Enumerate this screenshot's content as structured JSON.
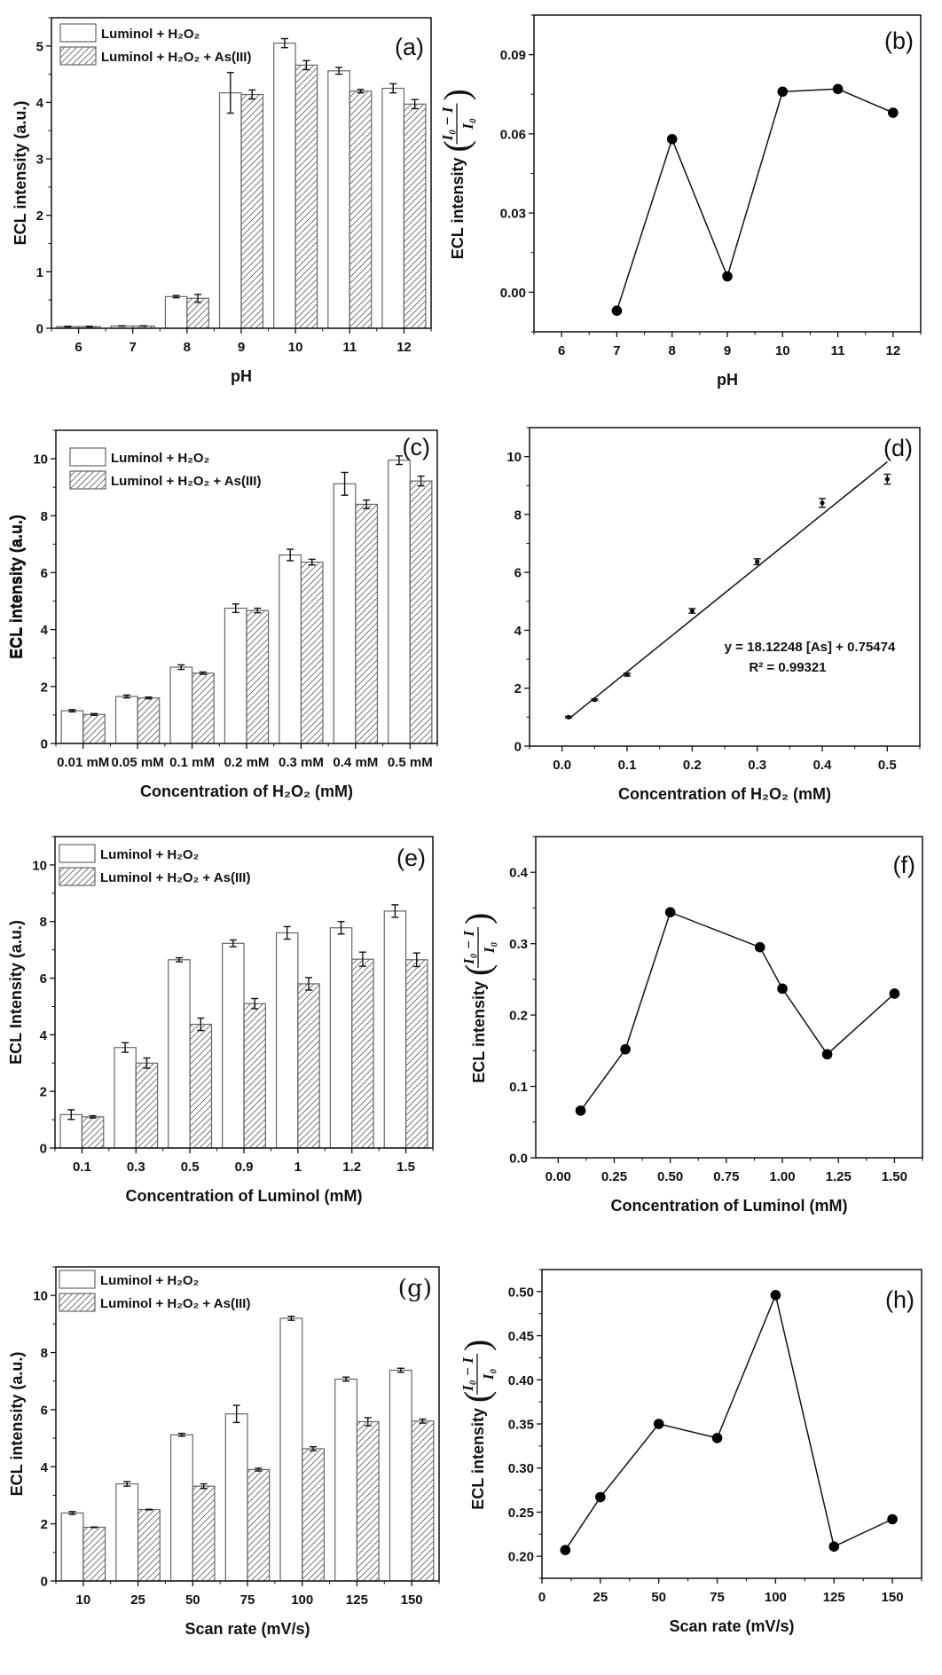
{
  "colors": {
    "axis": "#111111",
    "bar_outline": "#666666",
    "hatch": "#666666",
    "marker": "#000000"
  },
  "chart_data": [
    {
      "panel_label": "(a)",
      "type": "bar",
      "categories": [
        "6",
        "7",
        "8",
        "9",
        "10",
        "11",
        "12"
      ],
      "series": [
        {
          "name": "Luminol + H₂O₂",
          "pattern": "none",
          "values": [
            0.03,
            0.04,
            0.56,
            4.17,
            5.05,
            4.56,
            4.25
          ],
          "errors": [
            0.005,
            0.003,
            0.02,
            0.36,
            0.08,
            0.06,
            0.08
          ]
        },
        {
          "name": "Luminol + H₂O₂ + As(III)",
          "pattern": "hatched",
          "values": [
            0.03,
            0.04,
            0.53,
            4.14,
            4.66,
            4.2,
            3.97
          ],
          "errors": [
            0.005,
            0.003,
            0.07,
            0.08,
            0.08,
            0.03,
            0.08
          ]
        }
      ],
      "xlabel": "pH",
      "ylabel": "ECL intensity (a.u.)",
      "ylim": [
        0,
        5.5
      ],
      "yticks": [
        0,
        1,
        2,
        3,
        4,
        5
      ],
      "ytick_labels": [
        "0",
        "1",
        "2",
        "3",
        "4",
        "5"
      ],
      "legend": "top-left",
      "grid": false
    },
    {
      "panel_label": "(b)",
      "type": "line",
      "x": [
        7,
        8,
        9,
        10,
        11,
        12
      ],
      "y": [
        -0.007,
        0.058,
        0.006,
        0.076,
        0.077,
        0.068
      ],
      "xlabel": "pH",
      "ylabel": "ECL intensity",
      "ylabel_fraction": {
        "numerator": "I₀ − I",
        "denominator": "I₀"
      },
      "xlim": [
        5.5,
        12.5
      ],
      "xticks": [
        6,
        7,
        8,
        9,
        10,
        11,
        12
      ],
      "xtick_labels": [
        "6",
        "7",
        "8",
        "9",
        "10",
        "11",
        "12"
      ],
      "ylim": [
        -0.015,
        0.105
      ],
      "yticks": [
        0,
        0.03,
        0.06,
        0.09
      ],
      "ytick_labels": [
        "0.00",
        "0.03",
        "0.06",
        "0.09"
      ],
      "grid": false
    },
    {
      "panel_label": "(c)",
      "type": "bar",
      "categories": [
        "0.01 mM",
        "0.05 mM",
        "0.1 mM",
        "0.2 mM",
        "0.3 mM",
        "0.4 mM",
        "0.5 mM"
      ],
      "series": [
        {
          "name": "Luminol + H₂O₂",
          "pattern": "none",
          "values": [
            1.15,
            1.65,
            2.68,
            4.75,
            6.62,
            9.12,
            9.95
          ],
          "errors": [
            0.04,
            0.05,
            0.08,
            0.15,
            0.2,
            0.4,
            0.15
          ]
        },
        {
          "name": "Luminol + H₂O₂ + As(III)",
          "pattern": "hatched",
          "values": [
            1.02,
            1.6,
            2.47,
            4.67,
            6.37,
            8.4,
            9.22
          ],
          "errors": [
            0.03,
            0.03,
            0.04,
            0.08,
            0.1,
            0.15,
            0.17
          ]
        }
      ],
      "xlabel": "Concentration of H₂O₂ (mM)",
      "ylabel": "ECL intensity (a.u.)",
      "ylim": [
        0,
        11
      ],
      "yticks": [
        0,
        2,
        4,
        6,
        8,
        10
      ],
      "ytick_labels": [
        "0",
        "2",
        "4",
        "6",
        "8",
        "10"
      ],
      "legend": "top-left",
      "grid": false
    },
    {
      "panel_label": "(d)",
      "type": "scatter",
      "x": [
        0.01,
        0.05,
        0.1,
        0.2,
        0.3,
        0.4,
        0.5
      ],
      "y": [
        1.0,
        1.6,
        2.47,
        4.67,
        6.37,
        8.4,
        9.22
      ],
      "errors": [
        0.03,
        0.03,
        0.05,
        0.08,
        0.1,
        0.15,
        0.17
      ],
      "fit": {
        "slope": 18.12248,
        "intercept": 0.75474,
        "r2": 0.99321
      },
      "annotations": [
        "y = 18.12248 [As] + 0.75474",
        "R² = 0.99321"
      ],
      "xlabel": "Concentration of H₂O₂ (mM)",
      "ylabel": "ECL intensity (a.u.)",
      "xlim": [
        -0.05,
        0.55
      ],
      "xticks": [
        0,
        0.1,
        0.2,
        0.3,
        0.4,
        0.5
      ],
      "xtick_labels": [
        "0.0",
        "0.1",
        "0.2",
        "0.3",
        "0.4",
        "0.5"
      ],
      "ylim": [
        0,
        11
      ],
      "yticks": [
        0,
        2,
        4,
        6,
        8,
        10
      ],
      "ytick_labels": [
        "0",
        "2",
        "4",
        "6",
        "8",
        "10"
      ],
      "grid": false
    },
    {
      "panel_label": "(e)",
      "type": "bar",
      "categories": [
        "0.1",
        "0.3",
        "0.5",
        "0.9",
        "1",
        "1.2",
        "1.5"
      ],
      "series": [
        {
          "name": "Luminol + H₂O₂",
          "pattern": "none",
          "values": [
            1.18,
            3.55,
            6.65,
            7.23,
            7.6,
            7.78,
            8.37
          ],
          "errors": [
            0.17,
            0.17,
            0.07,
            0.12,
            0.22,
            0.22,
            0.22
          ]
        },
        {
          "name": "Luminol + H₂O₂ + As(III)",
          "pattern": "hatched",
          "values": [
            1.1,
            3.0,
            4.37,
            5.1,
            5.8,
            6.67,
            6.65
          ],
          "errors": [
            0.04,
            0.18,
            0.22,
            0.18,
            0.22,
            0.25,
            0.24
          ]
        }
      ],
      "xlabel": "Concentration of Luminol (mM)",
      "ylabel": "ECL Intensity (a.u.)",
      "ylim": [
        0,
        11
      ],
      "yticks": [
        0,
        2,
        4,
        6,
        8,
        10
      ],
      "ytick_labels": [
        "0",
        "2",
        "4",
        "6",
        "8",
        "10"
      ],
      "legend": "top-left",
      "grid": false
    },
    {
      "panel_label": "(f)",
      "type": "line",
      "x": [
        0.1,
        0.3,
        0.5,
        0.9,
        1.0,
        1.2,
        1.5
      ],
      "y": [
        0.066,
        0.152,
        0.344,
        0.295,
        0.237,
        0.145,
        0.23
      ],
      "xlabel": "Concentration of Luminol (mM)",
      "ylabel": "ECL intensity",
      "ylabel_fraction": {
        "numerator": "I₀ − I",
        "denominator": "I₀"
      },
      "xlim": [
        -0.1,
        1.625
      ],
      "xticks": [
        0,
        0.25,
        0.5,
        0.75,
        1,
        1.25,
        1.5
      ],
      "xtick_labels": [
        "0.00",
        "0.25",
        "0.50",
        "0.75",
        "1.00",
        "1.25",
        "1.50"
      ],
      "ylim": [
        0,
        0.45
      ],
      "yticks": [
        0,
        0.1,
        0.2,
        0.3,
        0.4
      ],
      "ytick_labels": [
        "0.0",
        "0.1",
        "0.2",
        "0.3",
        "0.4"
      ],
      "grid": false
    },
    {
      "panel_label": "(g)",
      "type": "bar",
      "categories": [
        "10",
        "25",
        "50",
        "75",
        "100",
        "125",
        "150"
      ],
      "series": [
        {
          "name": "Luminol + H₂O₂",
          "pattern": "none",
          "values": [
            2.38,
            3.4,
            5.12,
            5.85,
            9.2,
            7.07,
            7.38
          ],
          "errors": [
            0.05,
            0.08,
            0.05,
            0.3,
            0.07,
            0.07,
            0.07
          ]
        },
        {
          "name": "Luminol + H₂O₂ + As(III)",
          "pattern": "hatched",
          "values": [
            1.88,
            2.5,
            3.32,
            3.9,
            4.63,
            5.58,
            5.6
          ],
          "errors": [
            0.01,
            0.01,
            0.08,
            0.05,
            0.07,
            0.14,
            0.07
          ]
        }
      ],
      "xlabel": "Scan rate (mV/s)",
      "ylabel": "ECL intensity (a.u.)",
      "ylim": [
        0,
        11
      ],
      "yticks": [
        0,
        2,
        4,
        6,
        8,
        10
      ],
      "ytick_labels": [
        "0",
        "2",
        "4",
        "6",
        "8",
        "10"
      ],
      "legend": "top-left",
      "grid": false
    },
    {
      "panel_label": "(h)",
      "type": "line",
      "x": [
        10,
        25,
        50,
        75,
        100,
        125,
        150
      ],
      "y": [
        0.207,
        0.267,
        0.35,
        0.334,
        0.496,
        0.211,
        0.242
      ],
      "xlabel": "Scan rate (mV/s)",
      "ylabel": "ECL intensity",
      "ylabel_fraction": {
        "numerator": "I₀ − I",
        "denominator": "I₀"
      },
      "xlim": [
        0,
        162.5
      ],
      "xticks": [
        0,
        25,
        50,
        75,
        100,
        125,
        150
      ],
      "xtick_labels": [
        "0",
        "25",
        "50",
        "75",
        "100",
        "125",
        "150"
      ],
      "ylim": [
        0.175,
        0.525
      ],
      "yticks": [
        0.2,
        0.25,
        0.3,
        0.35,
        0.4,
        0.45,
        0.5
      ],
      "ytick_labels": [
        "0.20",
        "0.25",
        "0.30",
        "0.35",
        "0.40",
        "0.45",
        "0.50"
      ],
      "grid": false
    }
  ]
}
